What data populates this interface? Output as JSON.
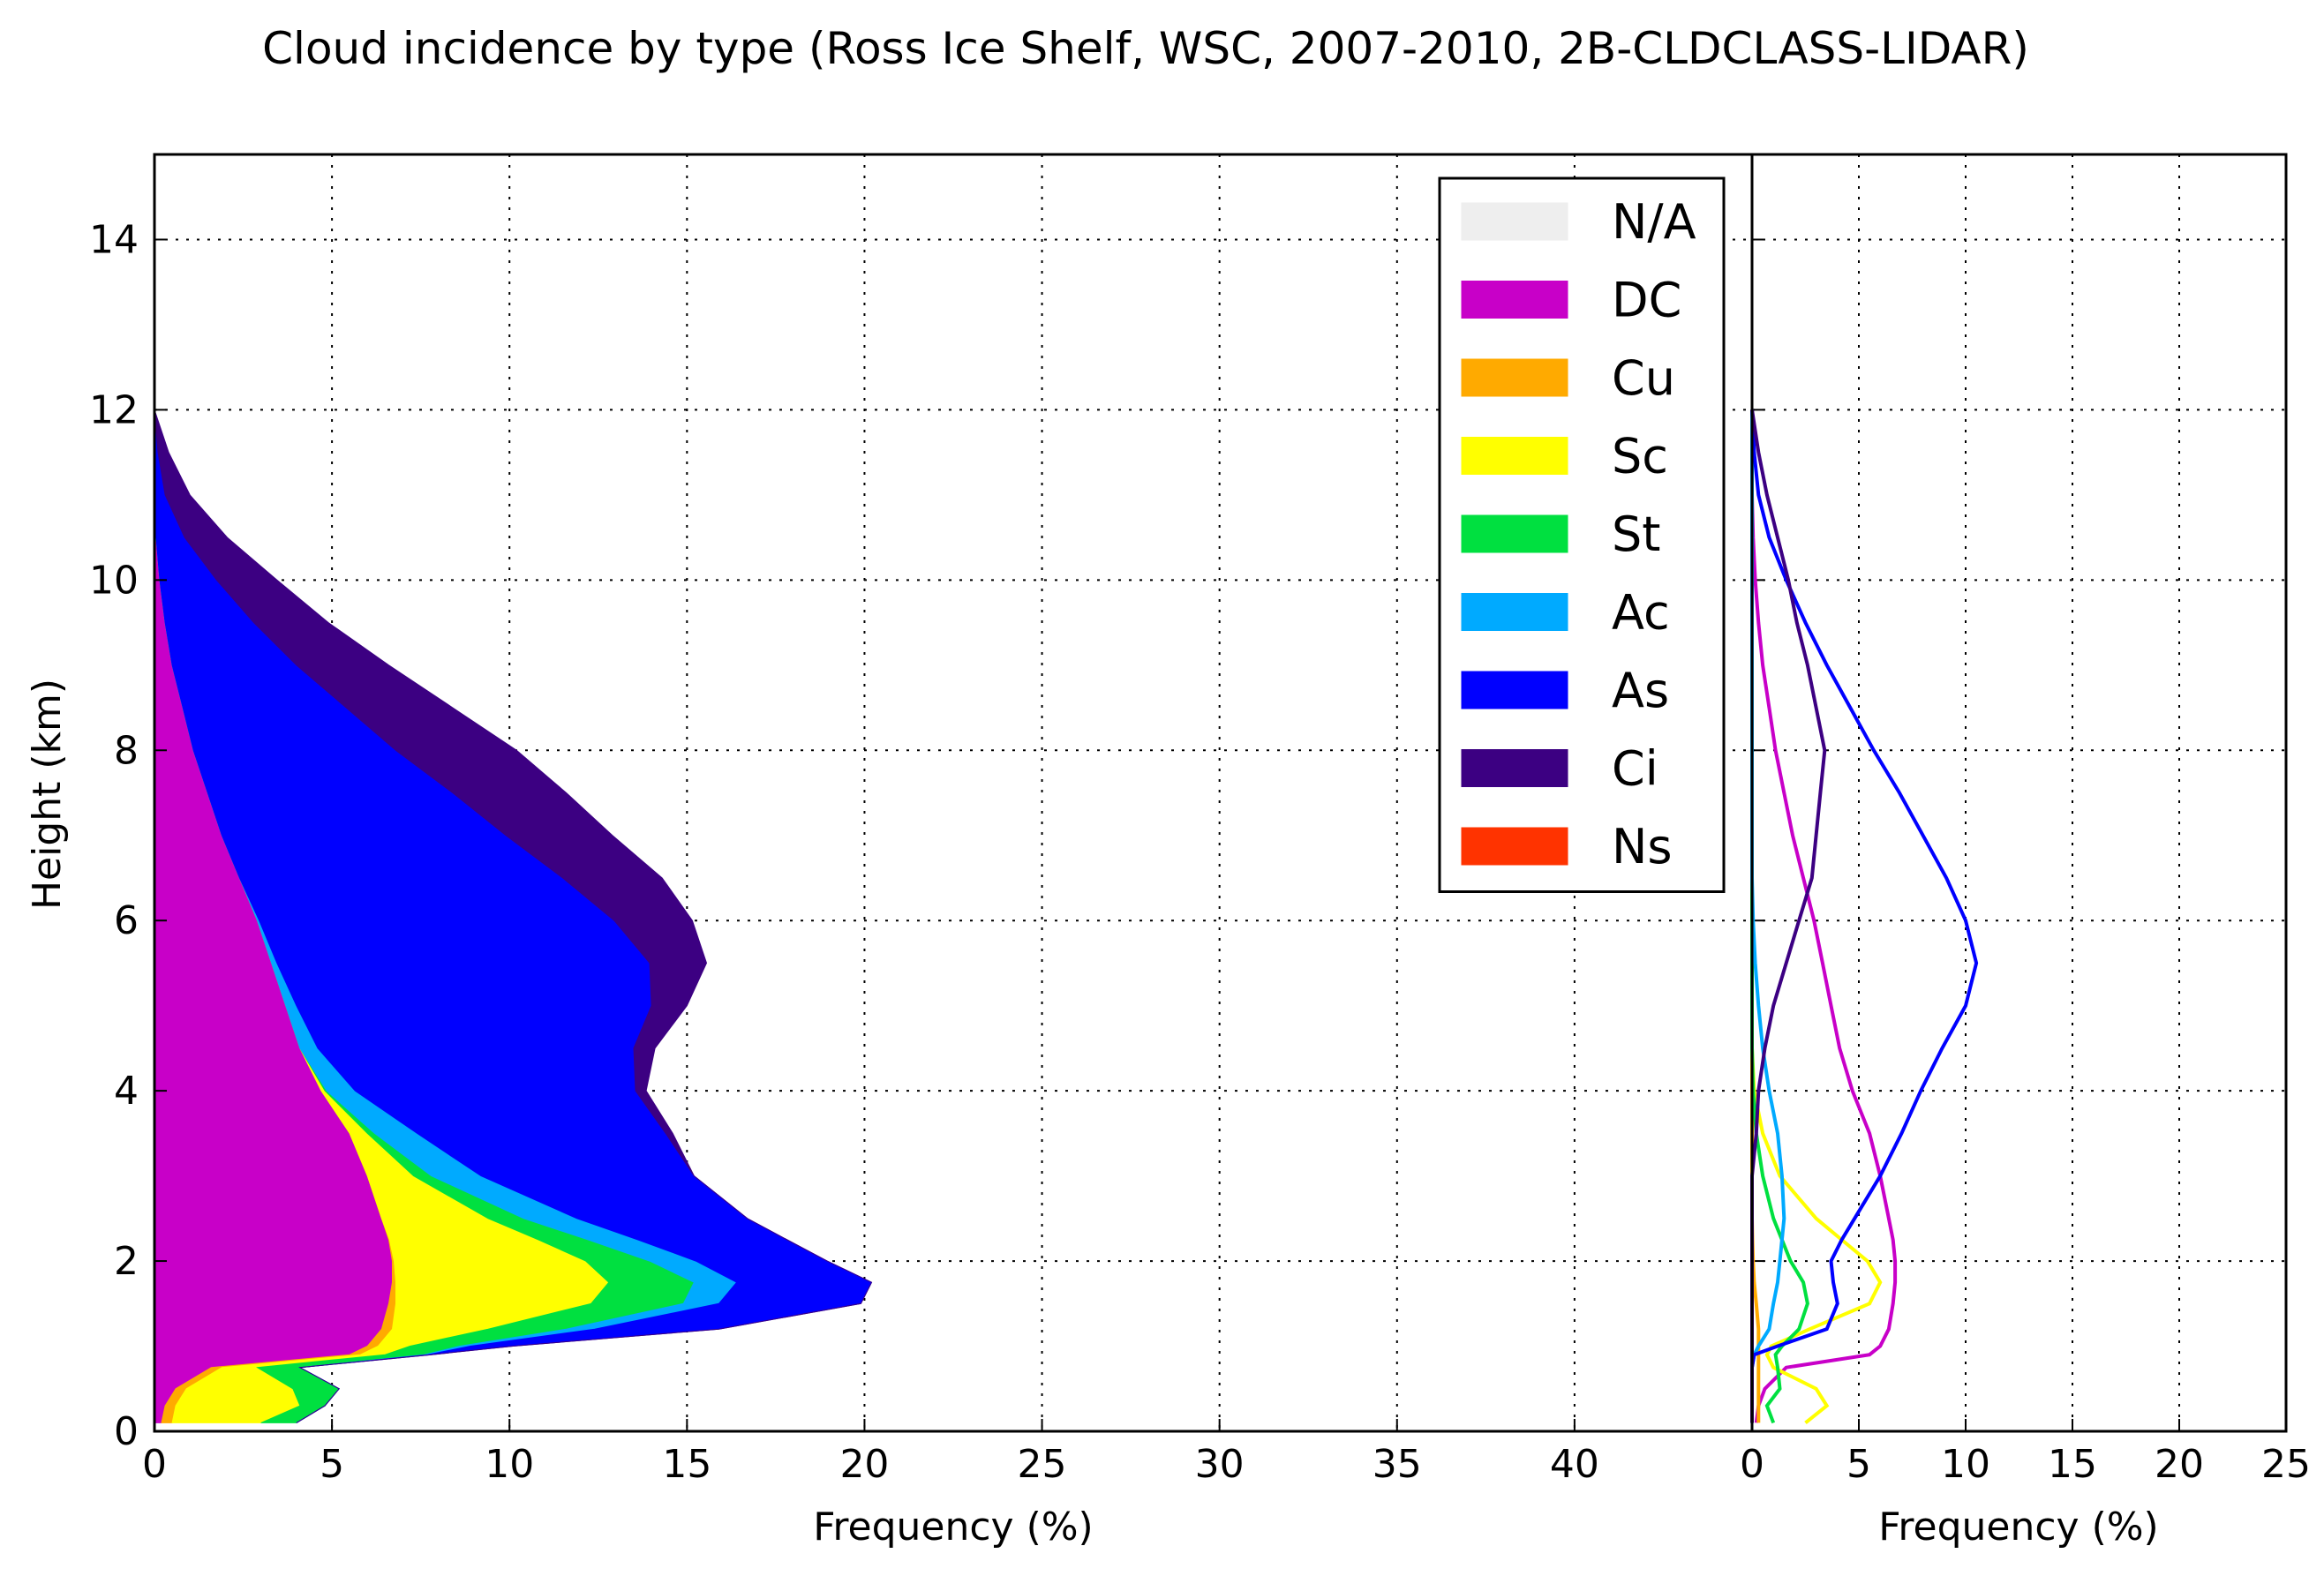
{
  "chart_data": [
    {
      "type": "area",
      "subtype": "stacked-horizontal",
      "title": "Cloud incidence by type (Ross Ice Shelf, WSC, 2007-2010, 2B-CLDCLASS-LIDAR)",
      "xlabel": "Frequency (%)",
      "ylabel": "Height (km)",
      "xlim": [
        0,
        45
      ],
      "ylim": [
        0,
        15
      ],
      "xticks": [
        "0",
        "5",
        "10",
        "15",
        "20",
        "25",
        "30",
        "35",
        "40"
      ],
      "yticks": [
        "0",
        "2",
        "4",
        "6",
        "8",
        "10",
        "12",
        "14"
      ],
      "grid": true,
      "legend_position": "upper-right",
      "y": [
        0.1,
        0.3,
        0.5,
        0.75,
        0.9,
        1.0,
        1.2,
        1.5,
        1.75,
        2.0,
        2.25,
        2.5,
        3.0,
        3.5,
        4.0,
        4.5,
        5.0,
        5.5,
        6.0,
        6.5,
        7.0,
        7.5,
        8.0,
        8.5,
        9.0,
        9.5,
        10.0,
        10.5,
        11.0,
        11.5,
        12.0
      ],
      "series": [
        {
          "name": "N/A",
          "color": "#eeeeee",
          "values": [
            0,
            0,
            0,
            0,
            0,
            0,
            0,
            0,
            0,
            0,
            0,
            0,
            0,
            0,
            0,
            0,
            0,
            0,
            0,
            0,
            0,
            0,
            0,
            0,
            0,
            0,
            0,
            0,
            0,
            0,
            0
          ]
        },
        {
          "name": "DC",
          "color": "#c800c8",
          "values": [
            0.2,
            0.3,
            0.6,
            1.6,
            5.5,
            6.0,
            6.4,
            6.6,
            6.7,
            6.7,
            6.6,
            6.4,
            6.0,
            5.5,
            4.7,
            4.1,
            3.7,
            3.3,
            2.9,
            2.4,
            1.9,
            1.5,
            1.1,
            0.8,
            0.5,
            0.3,
            0.15,
            0.05,
            0,
            0,
            0
          ]
        },
        {
          "name": "Cu",
          "color": "#ffaa00",
          "values": [
            0.3,
            0.3,
            0.3,
            0.3,
            0.3,
            0.3,
            0.3,
            0.2,
            0.1,
            0.05,
            0.02,
            0,
            0,
            0,
            0,
            0,
            0,
            0,
            0,
            0,
            0,
            0,
            0,
            0,
            0,
            0,
            0,
            0,
            0,
            0,
            0
          ]
        },
        {
          "name": "Sc",
          "color": "#ffff00",
          "values": [
            2.5,
            3.5,
            3.0,
            1.0,
            0.7,
            0.9,
            2.7,
            5.5,
            6.0,
            5.4,
            4.2,
            3.0,
            1.3,
            0.5,
            0.1,
            0,
            0,
            0,
            0,
            0,
            0,
            0,
            0,
            0,
            0,
            0,
            0,
            0,
            0,
            0,
            0
          ]
        },
        {
          "name": "St",
          "color": "#00e040",
          "values": [
            1.0,
            0.7,
            1.3,
            1.2,
            1.1,
            1.4,
            2.2,
            2.6,
            2.4,
            1.8,
            1.4,
            1.0,
            0.5,
            0.2,
            0.05,
            0,
            0,
            0,
            0,
            0,
            0,
            0,
            0,
            0,
            0,
            0,
            0,
            0,
            0,
            0,
            0
          ]
        },
        {
          "name": "Ac",
          "color": "#00aaff",
          "values": [
            0,
            0,
            0,
            0,
            0.1,
            0.3,
            0.8,
            1.0,
            1.2,
            1.3,
            1.4,
            1.5,
            1.4,
            1.2,
            0.8,
            0.5,
            0.3,
            0.15,
            0.05,
            0,
            0,
            0,
            0,
            0,
            0,
            0,
            0,
            0,
            0,
            0,
            0
          ]
        },
        {
          "name": "As",
          "color": "#0000ff",
          "values": [
            0,
            0,
            0,
            0,
            0.1,
            1.2,
            3.5,
            4.0,
            3.8,
            3.7,
            4.2,
            4.8,
            6.0,
            7.0,
            7.9,
            8.9,
            10.0,
            10.5,
            10.0,
            9.1,
            8.0,
            6.9,
            5.7,
            4.6,
            3.5,
            2.5,
            1.6,
            0.8,
            0.3,
            0.1,
            0
          ]
        },
        {
          "name": "Ci",
          "color": "#3c0082",
          "values": [
            0,
            0,
            0,
            0,
            0,
            0,
            0,
            0,
            0,
            0,
            0,
            0,
            0,
            0.2,
            0.3,
            0.6,
            1.0,
            1.6,
            2.2,
            2.8,
            3.0,
            3.2,
            3.4,
            3.0,
            2.6,
            2.1,
            1.7,
            1.2,
            0.7,
            0.3,
            0
          ]
        },
        {
          "name": "Ns",
          "color": "#ff3300",
          "values": [
            0,
            0,
            0,
            0,
            0,
            0,
            0,
            0,
            0,
            0,
            0,
            0,
            0,
            0,
            0,
            0,
            0,
            0,
            0,
            0,
            0,
            0,
            0,
            0,
            0,
            0,
            0,
            0,
            0,
            0,
            0
          ]
        }
      ]
    },
    {
      "type": "line",
      "xlabel": "Frequency (%)",
      "xlim": [
        0,
        25
      ],
      "ylim": [
        0,
        15
      ],
      "xticks": [
        "0",
        "5",
        "10",
        "15",
        "20",
        "25"
      ],
      "grid": true,
      "series_note": "unstacked profiles of the same series (same colors)"
    }
  ]
}
